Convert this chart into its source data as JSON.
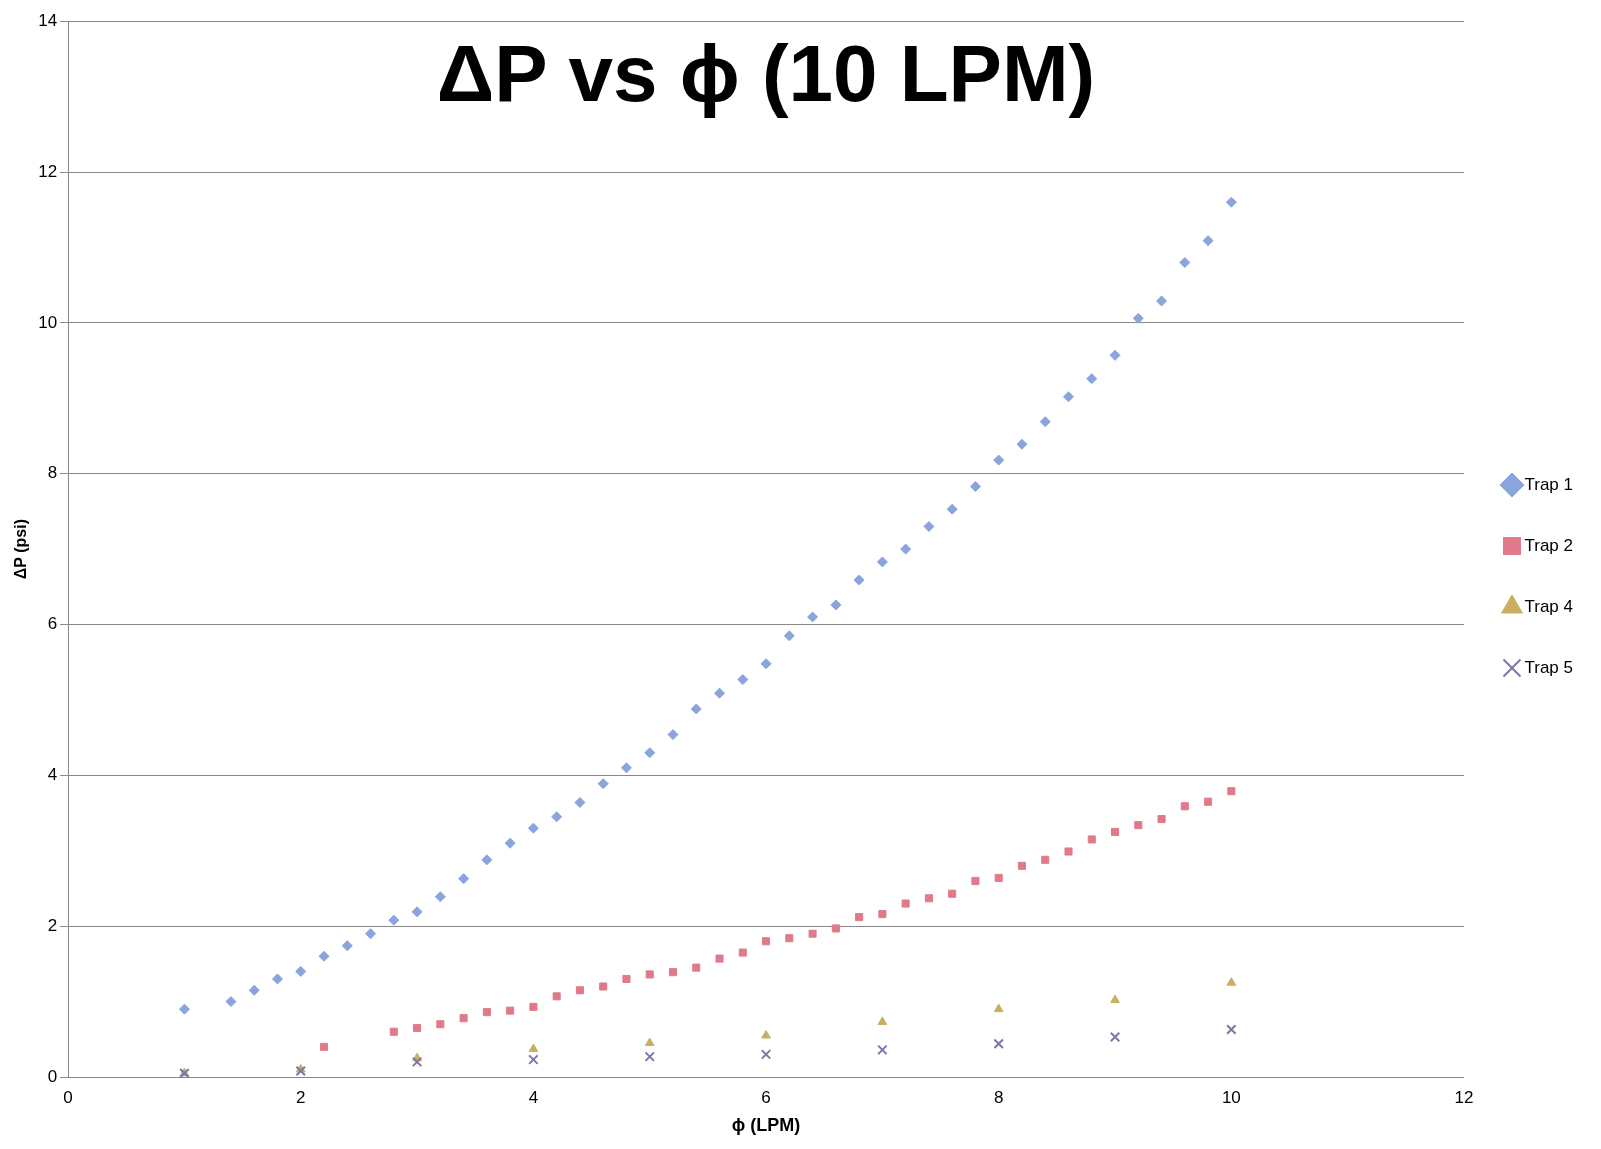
{
  "chart_data": {
    "type": "scatter",
    "title": "ΔP vs ϕ (10 LPM)",
    "xlabel": "ϕ (LPM)",
    "ylabel": "ΔP (psi)",
    "xlim": [
      0,
      12
    ],
    "xticks": [
      0,
      2,
      4,
      6,
      8,
      10,
      12
    ],
    "ylim": [
      0,
      14
    ],
    "yticks": [
      0,
      2,
      4,
      6,
      8,
      10,
      12,
      14
    ],
    "grid": "y",
    "legend": "right",
    "series": [
      {
        "name": "Trap 1",
        "color": "#8aa5dd",
        "marker": "diamond",
        "x": [
          1.0,
          1.4,
          1.6,
          1.8,
          2.0,
          2.2,
          2.4,
          2.6,
          2.8,
          3.0,
          3.2,
          3.4,
          3.6,
          3.8,
          4.0,
          4.2,
          4.4,
          4.6,
          4.8,
          5.0,
          5.2,
          5.4,
          5.6,
          5.8,
          6.0,
          6.2,
          6.4,
          6.6,
          6.8,
          7.0,
          7.2,
          7.4,
          7.6,
          7.8,
          8.0,
          8.2,
          8.4,
          8.6,
          8.8,
          9.0,
          9.2,
          9.4,
          9.6,
          9.8,
          10.0
        ],
        "values": [
          0.9,
          1.0,
          1.15,
          1.3,
          1.4,
          1.6,
          1.74,
          1.9,
          2.08,
          2.19,
          2.39,
          2.63,
          2.88,
          3.1,
          3.3,
          3.45,
          3.64,
          3.89,
          4.1,
          4.3,
          4.54,
          4.88,
          5.09,
          5.27,
          5.48,
          5.85,
          6.1,
          6.26,
          6.59,
          6.83,
          7.0,
          7.3,
          7.53,
          7.83,
          8.18,
          8.39,
          8.69,
          9.02,
          9.26,
          9.57,
          10.06,
          10.29,
          10.8,
          11.09,
          11.6
        ]
      },
      {
        "name": "Trap 2",
        "color": "#e07a8a",
        "marker": "square",
        "x": [
          2.2,
          2.8,
          3.0,
          3.2,
          3.4,
          3.6,
          3.8,
          4.0,
          4.2,
          4.4,
          4.6,
          4.8,
          5.0,
          5.2,
          5.4,
          5.6,
          5.8,
          6.0,
          6.2,
          6.4,
          6.6,
          6.8,
          7.0,
          7.2,
          7.4,
          7.6,
          7.8,
          8.0,
          8.2,
          8.4,
          8.6,
          8.8,
          9.0,
          9.2,
          9.4,
          9.6,
          9.8,
          10.0
        ],
        "values": [
          0.4,
          0.6,
          0.65,
          0.7,
          0.78,
          0.86,
          0.88,
          0.93,
          1.07,
          1.15,
          1.2,
          1.3,
          1.36,
          1.39,
          1.45,
          1.57,
          1.65,
          1.8,
          1.84,
          1.9,
          1.97,
          2.12,
          2.16,
          2.3,
          2.37,
          2.43,
          2.6,
          2.64,
          2.8,
          2.88,
          2.99,
          3.15,
          3.25,
          3.34,
          3.42,
          3.59,
          3.65,
          3.79
        ]
      },
      {
        "name": "Trap 4",
        "color": "#c8b060",
        "marker": "triangle",
        "x": [
          1,
          2,
          3,
          4,
          5,
          6,
          7,
          8,
          9,
          10
        ],
        "values": [
          0.05,
          0.1,
          0.25,
          0.37,
          0.45,
          0.55,
          0.73,
          0.9,
          1.02,
          1.25
        ]
      },
      {
        "name": "Trap 5",
        "color": "#7a78a8",
        "marker": "cross",
        "x": [
          1,
          2,
          3,
          4,
          5,
          6,
          7,
          8,
          9,
          10
        ],
        "values": [
          0.05,
          0.08,
          0.2,
          0.23,
          0.27,
          0.3,
          0.36,
          0.44,
          0.53,
          0.63
        ]
      }
    ]
  }
}
